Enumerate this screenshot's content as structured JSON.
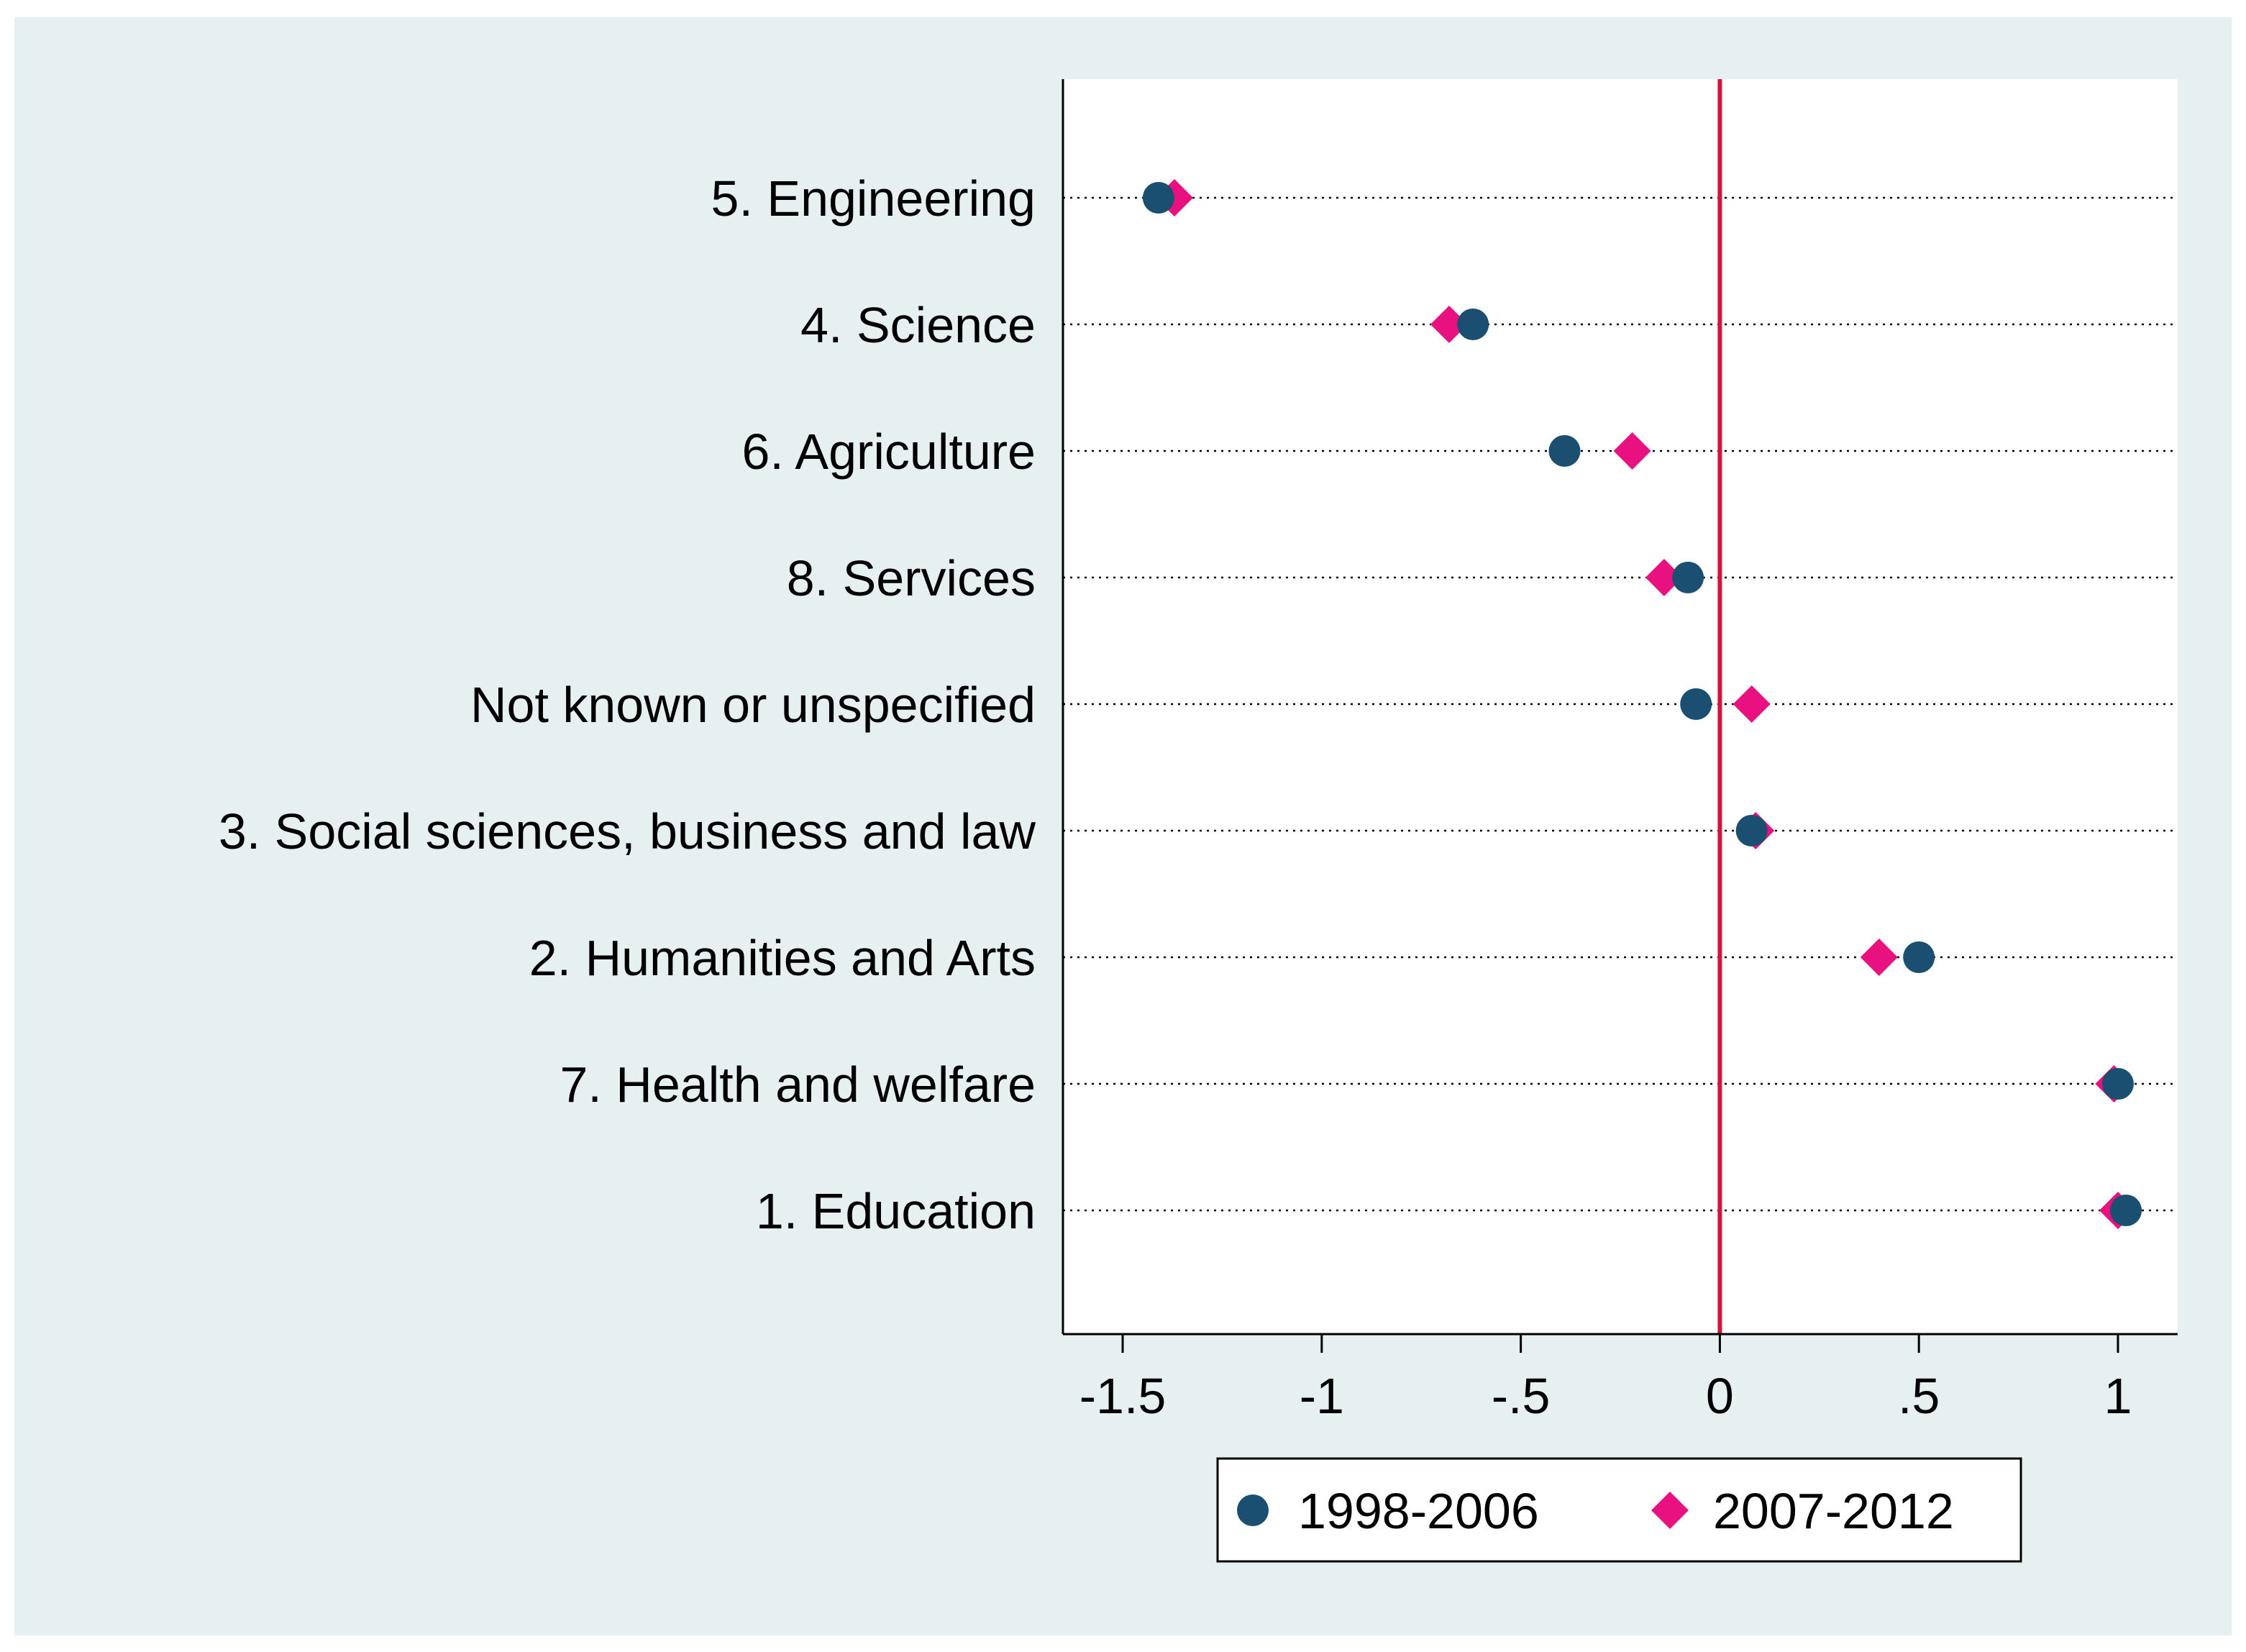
{
  "chart_data": {
    "type": "dot",
    "title": "",
    "xlabel": "",
    "ylabel": "",
    "xlim": [
      -1.65,
      1.15
    ],
    "categories": [
      "5. Engineering",
      "4. Science",
      "6. Agriculture",
      "8. Services",
      "Not known or unspecified",
      "3. Social sciences, business and law",
      "2. Humanities and Arts",
      "7. Health and welfare",
      "1. Education"
    ],
    "series": [
      {
        "name": "1998-2006",
        "marker": "circle",
        "color": "#1a4f72",
        "values": [
          -1.41,
          -0.62,
          -0.39,
          -0.08,
          -0.06,
          0.08,
          0.5,
          1.0,
          1.02
        ]
      },
      {
        "name": "2007-2012",
        "marker": "diamond",
        "color": "#e8117f",
        "values": [
          -1.37,
          -0.68,
          -0.22,
          -0.14,
          0.08,
          0.09,
          0.4,
          0.99,
          1.0
        ]
      }
    ],
    "xticks": [
      -1.5,
      -1,
      -0.5,
      0,
      0.5,
      1
    ],
    "xtick_labels": [
      "-1.5",
      "-1",
      "-.5",
      "0",
      ".5",
      "1"
    ],
    "reference_line": {
      "x": 0,
      "color": "#d4143c"
    },
    "grid": "dotted horizontal",
    "legend": {
      "position": "bottom-center",
      "entries": [
        "1998-2006",
        "2007-2012"
      ]
    },
    "colors": {
      "outer_background": "#e6f0f0",
      "plot_background": "#ffffff"
    }
  }
}
